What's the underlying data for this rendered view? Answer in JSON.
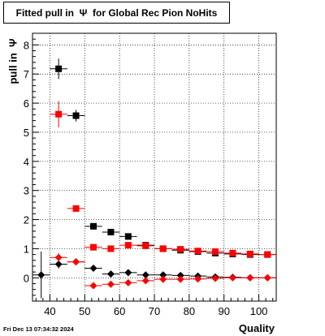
{
  "title": "Fitted pull in  Ψ  for Global Rec Pion NoHits",
  "footer_date": "Fri Dec 13 07:34:32 2024",
  "chart_data": {
    "type": "scatter",
    "title": "Fitted pull in  Ψ  for Global Rec Pion NoHits",
    "xlabel": "Quality",
    "ylabel": "pull in  Ψ",
    "xlim": [
      35,
      105
    ],
    "ylim": [
      -0.8,
      8.4
    ],
    "xticks": [
      40,
      50,
      60,
      70,
      80,
      90,
      100
    ],
    "yticks": [
      0,
      1,
      2,
      3,
      4,
      5,
      6,
      7,
      8
    ],
    "grid": true,
    "bin_half_width": 2.5,
    "series": [
      {
        "color": "#000000",
        "marker": "square",
        "points": [
          {
            "x": 42.5,
            "y": 7.18,
            "err": 0.35
          },
          {
            "x": 47.5,
            "y": 5.57,
            "err": 0.2
          },
          {
            "x": 52.5,
            "y": 1.77,
            "err": 0.1
          },
          {
            "x": 57.5,
            "y": 1.57,
            "err": 0.08
          },
          {
            "x": 62.5,
            "y": 1.42,
            "err": 0.07
          },
          {
            "x": 67.5,
            "y": 1.12,
            "err": 0.06
          },
          {
            "x": 72.5,
            "y": 1.0,
            "err": 0.05
          },
          {
            "x": 77.5,
            "y": 0.95,
            "err": 0.05
          },
          {
            "x": 82.5,
            "y": 0.9,
            "err": 0.05
          },
          {
            "x": 87.5,
            "y": 0.85,
            "err": 0.04
          },
          {
            "x": 92.5,
            "y": 0.82,
            "err": 0.04
          },
          {
            "x": 97.5,
            "y": 0.8,
            "err": 0.04
          },
          {
            "x": 102.5,
            "y": 0.8,
            "err": 0.04
          }
        ]
      },
      {
        "color": "#ff0000",
        "marker": "square",
        "points": [
          {
            "x": 42.5,
            "y": 5.62,
            "err": 0.45
          },
          {
            "x": 47.5,
            "y": 2.38,
            "err": 0.05
          },
          {
            "x": 52.5,
            "y": 1.05,
            "err": 0.04
          },
          {
            "x": 57.5,
            "y": 1.0,
            "err": 0.04
          },
          {
            "x": 62.5,
            "y": 1.12,
            "err": 0.04
          },
          {
            "x": 67.5,
            "y": 1.1,
            "err": 0.04
          },
          {
            "x": 72.5,
            "y": 1.0,
            "err": 0.03
          },
          {
            "x": 77.5,
            "y": 0.98,
            "err": 0.03
          },
          {
            "x": 82.5,
            "y": 0.92,
            "err": 0.03
          },
          {
            "x": 87.5,
            "y": 0.9,
            "err": 0.03
          },
          {
            "x": 92.5,
            "y": 0.85,
            "err": 0.03
          },
          {
            "x": 97.5,
            "y": 0.82,
            "err": 0.03
          },
          {
            "x": 102.5,
            "y": 0.8,
            "err": 0.03
          }
        ]
      },
      {
        "color": "#000000",
        "marker": "diamond",
        "points": [
          {
            "x": 37.5,
            "y": 0.1,
            "err": 0.8
          },
          {
            "x": 42.5,
            "y": 0.47,
            "err": 0.15
          },
          {
            "x": 47.5,
            "y": 0.55,
            "err": 0.05
          },
          {
            "x": 52.5,
            "y": 0.33,
            "err": 0.04
          },
          {
            "x": 57.5,
            "y": 0.13,
            "err": 0.03
          },
          {
            "x": 62.5,
            "y": 0.18,
            "err": 0.03
          },
          {
            "x": 67.5,
            "y": 0.1,
            "err": 0.03
          },
          {
            "x": 72.5,
            "y": 0.1,
            "err": 0.02
          },
          {
            "x": 77.5,
            "y": 0.08,
            "err": 0.02
          },
          {
            "x": 82.5,
            "y": 0.06,
            "err": 0.02
          },
          {
            "x": 87.5,
            "y": 0.03,
            "err": 0.02
          },
          {
            "x": 92.5,
            "y": 0.02,
            "err": 0.02
          },
          {
            "x": 97.5,
            "y": 0.0,
            "err": 0.02
          },
          {
            "x": 102.5,
            "y": 0.0,
            "err": 0.02
          }
        ]
      },
      {
        "color": "#ff0000",
        "marker": "diamond",
        "points": [
          {
            "x": 42.5,
            "y": 0.7,
            "err": 0.15
          },
          {
            "x": 47.5,
            "y": 0.55,
            "err": 0.05
          },
          {
            "x": 52.5,
            "y": -0.27,
            "err": 0.04
          },
          {
            "x": 57.5,
            "y": -0.22,
            "err": 0.03
          },
          {
            "x": 62.5,
            "y": -0.17,
            "err": 0.03
          },
          {
            "x": 67.5,
            "y": -0.1,
            "err": 0.03
          },
          {
            "x": 72.5,
            "y": -0.05,
            "err": 0.02
          },
          {
            "x": 77.5,
            "y": -0.05,
            "err": 0.02
          },
          {
            "x": 82.5,
            "y": -0.04,
            "err": 0.02
          },
          {
            "x": 87.5,
            "y": -0.02,
            "err": 0.02
          },
          {
            "x": 92.5,
            "y": 0.0,
            "err": 0.02
          },
          {
            "x": 97.5,
            "y": 0.0,
            "err": 0.02
          },
          {
            "x": 102.5,
            "y": 0.0,
            "err": 0.02
          }
        ]
      }
    ]
  }
}
